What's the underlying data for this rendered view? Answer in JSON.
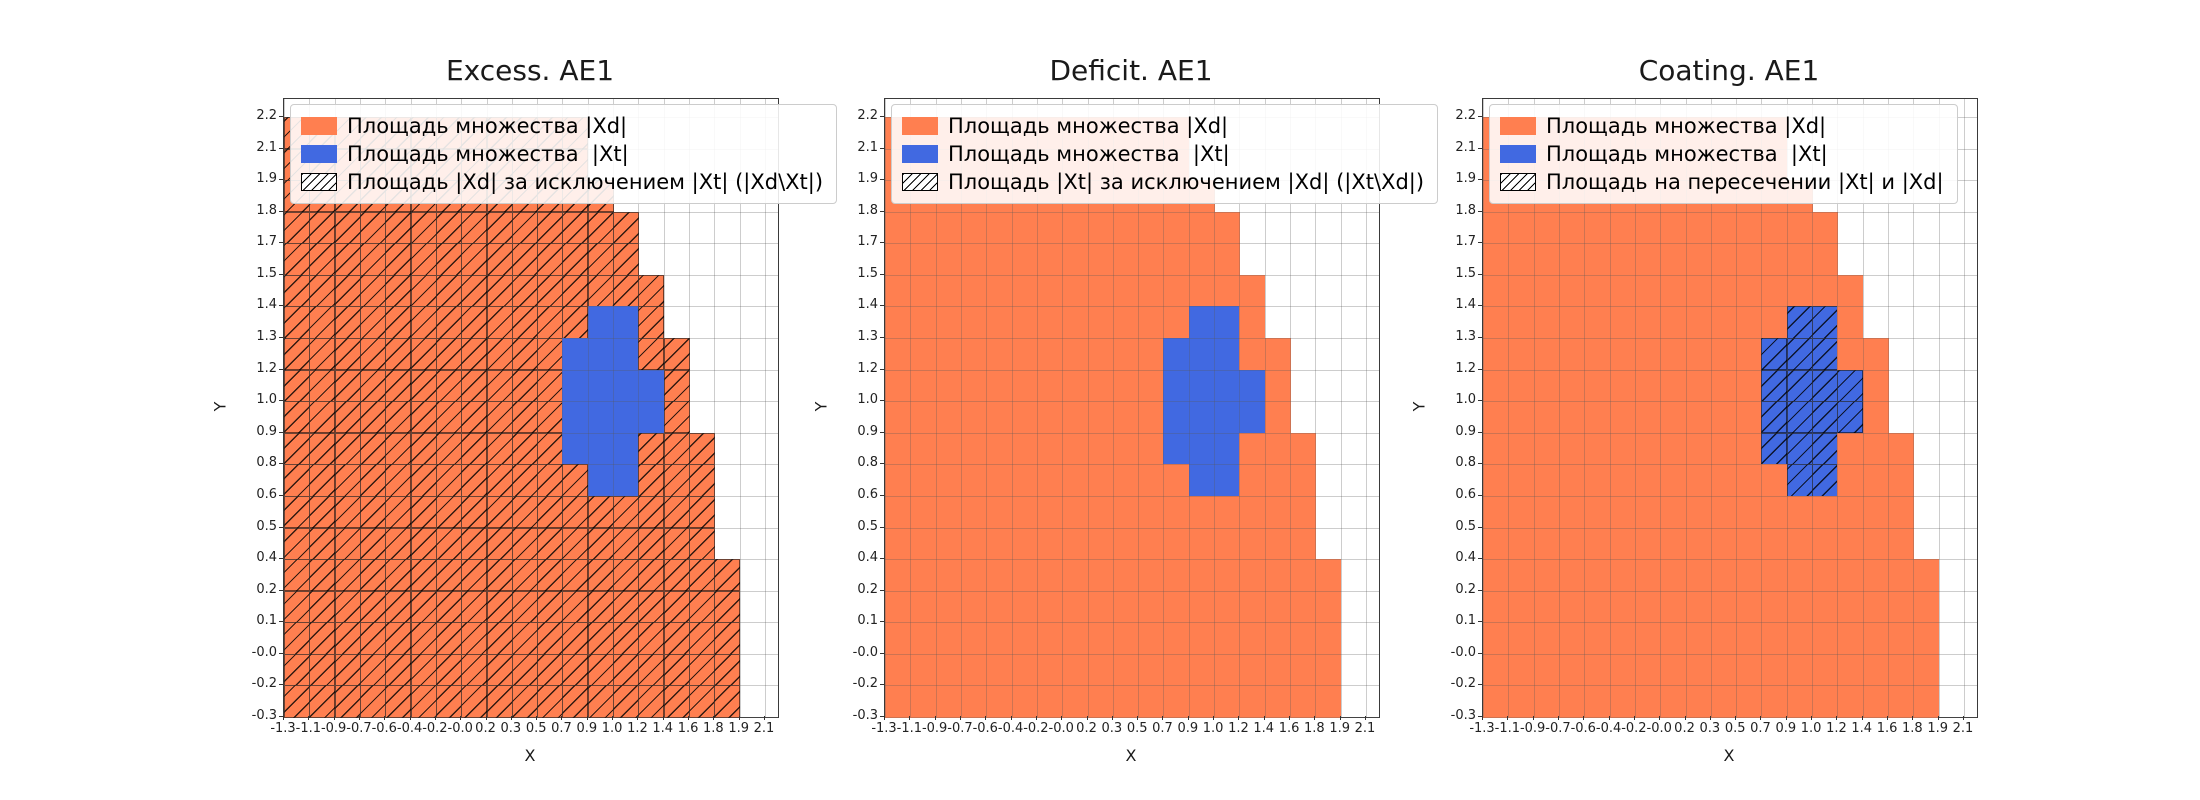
{
  "figure": {
    "xlabel": "X",
    "ylabel": "Y",
    "colors": {
      "xd_fill": "#FF7F50",
      "xt_fill": "#4169E1",
      "grid_line": "#5a5a5a",
      "hatch_line": "#000000",
      "background": "#ffffff"
    }
  },
  "plots": [
    {
      "title": "Excess. AE1",
      "hatch_target": "O",
      "legend_items": [
        {
          "swatch": "xd",
          "label": "Площадь множества |Xd|"
        },
        {
          "swatch": "xt",
          "label": "Площадь множества  |Xt|"
        },
        {
          "swatch": "hatch",
          "label": "Площадь |Xd| за исключением |Xt| (|Xd\\Xt|)"
        }
      ]
    },
    {
      "title": "Deficit. AE1",
      "hatch_target": "none",
      "legend_items": [
        {
          "swatch": "xd",
          "label": "Площадь множества |Xd|"
        },
        {
          "swatch": "xt",
          "label": "Площадь множества  |Xt|"
        },
        {
          "swatch": "hatch",
          "label": "Площадь |Xt| за исключением |Xd| (|Xt\\Xd|)"
        }
      ]
    },
    {
      "title": "Coating. AE1",
      "hatch_target": "B",
      "legend_items": [
        {
          "swatch": "xd",
          "label": "Площадь множества |Xd|"
        },
        {
          "swatch": "xt",
          "label": "Площадь множества  |Xt|"
        },
        {
          "swatch": "hatch",
          "label": "Площадь на пересечении |Xt| и |Xd|"
        }
      ]
    }
  ],
  "chart_data": {
    "type": "heatmap",
    "panels": [
      "Excess. AE1",
      "Deficit. AE1",
      "Coating. AE1"
    ],
    "hatch_semantics_per_panel": [
      "Xd minus Xt (all orange cells hatched)",
      "Xt minus Xd (empty, no hatch)",
      "intersection of Xt and Xd (all blue cells hatched)"
    ],
    "xlabel": "X",
    "ylabel": "Y",
    "x_tick_labels": [
      "-1.3",
      "-1.1",
      "-0.9",
      "-0.7",
      "-0.6",
      "-0.4",
      "-0.2",
      "-0.0",
      "0.2",
      "0.3",
      "0.5",
      "0.7",
      "0.9",
      "1.0",
      "1.2",
      "1.4",
      "1.6",
      "1.8",
      "1.9",
      "2.1"
    ],
    "y_tick_labels_top_to_bottom": [
      "2.2",
      "2.1",
      "1.9",
      "1.8",
      "1.7",
      "1.5",
      "1.4",
      "1.3",
      "1.2",
      "1.0",
      "0.9",
      "0.8",
      "0.6",
      "0.5",
      "0.4",
      "0.2",
      "0.1",
      "-0.0",
      "-0.2",
      "-0.3"
    ],
    "cell_legend": {
      "O": "set |Xd| (orange)",
      "B": "set |Xt| (blue)",
      ".": "empty"
    },
    "grid_rows_top_to_bottom": [
      "OOOOOOOOOOOO.......",
      "OOOOOOOOOOOO.......",
      "OOOOOOOOOOOOO......",
      "OOOOOOOOOOOOOO.....",
      "OOOOOOOOOOOOOO.....",
      "OOOOOOOOOOOOOOO....",
      "OOOOOOOOOOOOBBO....",
      "OOOOOOOOOOOBBBOO...",
      "OOOOOOOOOOOBBBBO...",
      "OOOOOOOOOOOBBBBO...",
      "OOOOOOOOOOOBBBOOO..",
      "OOOOOOOOOOOOBBOOO..",
      "OOOOOOOOOOOOOOOOO..",
      "OOOOOOOOOOOOOOOOO..",
      "OOOOOOOOOOOOOOOOOO.",
      "OOOOOOOOOOOOOOOOOO.",
      "OOOOOOOOOOOOOOOOOO.",
      "OOOOOOOOOOOOOOOOOO.",
      "OOOOOOOOOOOOOOOOOO."
    ]
  }
}
